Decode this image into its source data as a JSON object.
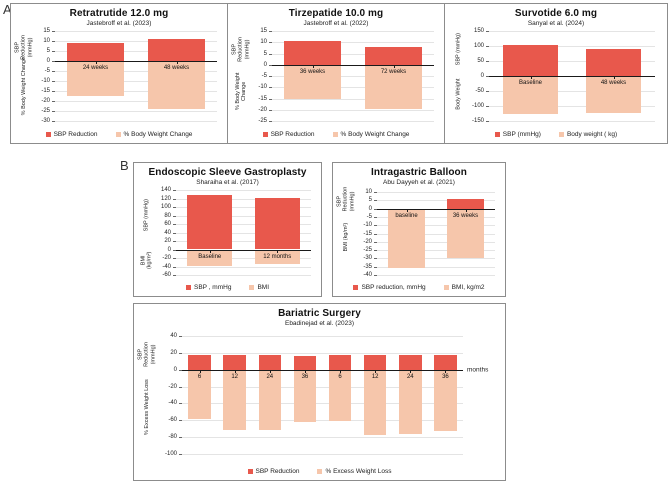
{
  "figure": {
    "panel_a_label": "A",
    "panel_b_label": "B"
  },
  "colors": {
    "sbp_red": "#e8584c",
    "weight_salmon": "#f6c6ab",
    "gridline": "#e4e4e4",
    "axis": "#1a1a1a",
    "box_border": "#8c8c8c"
  },
  "chart_data": [
    {
      "type": "bar",
      "title": "Retratrutide 12.0 mg",
      "subtitle": "Jastebroff et al. (2023)",
      "ylabel_top": "SBP Reduction (mmHg)",
      "ylabel_bottom": "% Body Weight Change",
      "ylim": [
        -30,
        15
      ],
      "yticks": [
        15,
        10,
        5,
        0,
        -5,
        -10,
        -15,
        -20,
        -25,
        -30
      ],
      "categories": [
        "24 weeks",
        "48 weeks"
      ],
      "x_unit_label": "",
      "grid": true,
      "legend_position": "bottom",
      "series": [
        {
          "name": "SBP Reduction",
          "color": "#e8584c",
          "values": [
            9,
            11
          ]
        },
        {
          "name": "% Body Weight Change",
          "color": "#f6c6ab",
          "values": [
            -17.5,
            -24
          ]
        }
      ],
      "legend": [
        "SBP Reduction",
        "% Body Weight Change"
      ]
    },
    {
      "type": "bar",
      "title": "Tirzepatide 10.0 mg",
      "subtitle": "Jastebroff et al. (2022)",
      "ylabel_top": "SBP Reduction (mmHg)",
      "ylabel_bottom": "% Body Weight Change",
      "ylim": [
        -25,
        15
      ],
      "yticks": [
        15,
        10,
        5,
        0,
        -5,
        -10,
        -15,
        -20,
        -25
      ],
      "categories": [
        "36 weeks",
        "72 weeks"
      ],
      "x_unit_label": "",
      "grid": true,
      "legend_position": "bottom",
      "series": [
        {
          "name": "SBP Reduction",
          "color": "#e8584c",
          "values": [
            10.5,
            8
          ]
        },
        {
          "name": "% Body Weight Change",
          "color": "#f6c6ab",
          "values": [
            -15,
            -19.5
          ]
        }
      ],
      "legend": [
        "SBP Reduction",
        "% Body Weight Change"
      ]
    },
    {
      "type": "bar",
      "title": "Survotide 6.0 mg",
      "subtitle": "Sanyal et al. (2024)",
      "ylabel_top": "SBP (mmHg)",
      "ylabel_bottom": "Body Weight",
      "ylim": [
        -150,
        150
      ],
      "yticks": [
        150,
        100,
        50,
        0,
        -50,
        -100,
        -150
      ],
      "categories": [
        "Baseline",
        "48 weeks"
      ],
      "x_unit_label": "",
      "grid": true,
      "legend_position": "bottom",
      "series": [
        {
          "name": "SBP (mmHg)",
          "color": "#e8584c",
          "values": [
            105,
            90
          ]
        },
        {
          "name": "Body weight ( kg)",
          "color": "#f6c6ab",
          "values": [
            -128,
            -122
          ]
        }
      ],
      "legend": [
        "SBP (mmHg)",
        "Body weight ( kg)"
      ]
    },
    {
      "type": "bar",
      "title": "Endoscopic Sleeve Gastroplasty",
      "subtitle": "Sharaiha et al. (2017)",
      "ylabel_top": "SBP (mmHg)",
      "ylabel_bottom": "BMI (kg/m²)",
      "ylim": [
        -60,
        140
      ],
      "yticks": [
        140,
        120,
        100,
        80,
        60,
        40,
        20,
        0,
        -20,
        -40,
        -60
      ],
      "categories": [
        "Baseline",
        "12 months"
      ],
      "x_unit_label": "",
      "grid": true,
      "legend_position": "bottom",
      "series": [
        {
          "name": "SBP , mmHg",
          "color": "#e8584c",
          "values": [
            129,
            122
          ]
        },
        {
          "name": "BMI",
          "color": "#f6c6ab",
          "values": [
            -38,
            -33
          ]
        }
      ],
      "legend": [
        "SBP , mmHg",
        "BMI"
      ]
    },
    {
      "type": "bar",
      "title": "Intragastric Balloon",
      "subtitle": "Abu Dayyeh et al. (2021)",
      "ylabel_top": "SBP Reduction (mmHg)",
      "ylabel_bottom": "BMI (kg/m²)",
      "ylim": [
        -40,
        10
      ],
      "yticks": [
        10,
        5,
        0,
        -5,
        -10,
        -15,
        -20,
        -25,
        -30,
        -35,
        -40
      ],
      "categories": [
        "baseline",
        "36 weeks"
      ],
      "x_unit_label": "",
      "grid": true,
      "legend_position": "bottom",
      "series": [
        {
          "name": "SBP reduction, mmHg",
          "color": "#e8584c",
          "values": [
            0,
            6
          ]
        },
        {
          "name": "BMI, kg/m2",
          "color": "#f6c6ab",
          "values": [
            -36,
            -30
          ]
        }
      ],
      "legend": [
        "SBP reduction, mmHg",
        "BMI, kg/m2"
      ]
    },
    {
      "type": "bar",
      "title": "Bariatric Surgery",
      "subtitle": "Ebadinejad et al. (2023)",
      "ylabel_top": "SBP Reduction (mmHg)",
      "ylabel_bottom": "% Excess Weight Loss",
      "ylim": [
        -100,
        40
      ],
      "yticks": [
        40,
        20,
        0,
        -20,
        -40,
        -60,
        -80,
        -100
      ],
      "categories": [
        "6",
        "12",
        "24",
        "36",
        "6",
        "12",
        "24",
        "36"
      ],
      "x_unit_label": "months",
      "grid": true,
      "legend_position": "bottom",
      "series": [
        {
          "name": "SBP Reduction",
          "color": "#e8584c",
          "values": [
            17,
            18,
            18,
            16,
            17,
            18,
            18,
            17
          ]
        },
        {
          "name": "% Excess Weight Loss",
          "color": "#f6c6ab",
          "values": [
            -58,
            -71,
            -71,
            -62,
            -61,
            -78,
            -76,
            -73
          ]
        }
      ],
      "legend": [
        "SBP Reduction",
        "% Excess Weight Loss"
      ]
    }
  ]
}
